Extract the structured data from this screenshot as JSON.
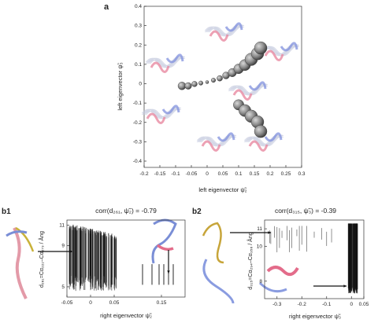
{
  "panel_a": {
    "label": "a",
    "xlabel": "left eigenvector ψ̃₂",
    "ylabel": "left eigenvector ψ̃₃",
    "xticks": [
      "-0.2",
      "-0.15",
      "-0.1",
      "-0.05",
      "0",
      "0.05",
      "0.1",
      "0.15",
      "0.2",
      "0.25",
      "0.3"
    ],
    "yticks": [
      "0.4",
      "0.3",
      "0.2",
      "0.1",
      "0",
      "-0.1",
      "-0.2",
      "-0.3",
      "-0.4"
    ]
  },
  "panel_b1": {
    "label": "b1",
    "title": "corr(d₂₆₁, ψ̃₂) = -0.79",
    "ylabel": "d₂₆₁=Cα₂₂₁–Cα₂₇₃ / Ång",
    "xlabel": "right eigenvector ψ̃₂",
    "xticks": [
      "-0.05",
      "0",
      "0.05",
      "0.15"
    ],
    "yticks": [
      "11",
      "9",
      "5"
    ]
  },
  "panel_b2": {
    "label": "b2",
    "title": "corr(d₃₁₅, ψ̃₃) = -0.39",
    "ylabel": "d₃₁₅=Cα₂₉₄–Cα₃₅₆ / Ång",
    "xlabel": "right eigenvector ψ̃₃",
    "xticks": [
      "-0.3",
      "-0.2",
      "-0.1",
      "0",
      "0.05"
    ],
    "yticks": [
      "11",
      "10",
      "8"
    ]
  },
  "chart_data": [
    {
      "type": "scatter",
      "title": "",
      "xlabel": "left eigenvector ψ̃₂",
      "ylabel": "left eigenvector ψ̃₃",
      "xlim": [
        -0.2,
        0.3
      ],
      "ylim": [
        -0.45,
        0.4
      ],
      "series": [
        {
          "points": [
            {
              "x": -0.08,
              "y": -0.02
            },
            {
              "x": -0.06,
              "y": -0.02
            },
            {
              "x": -0.04,
              "y": -0.01
            },
            {
              "x": -0.02,
              "y": -0.005
            },
            {
              "x": 0.0,
              "y": 0.0
            },
            {
              "x": 0.02,
              "y": 0.01
            },
            {
              "x": 0.04,
              "y": 0.02
            },
            {
              "x": 0.06,
              "y": 0.035
            },
            {
              "x": 0.08,
              "y": 0.05
            },
            {
              "x": 0.1,
              "y": 0.07
            },
            {
              "x": 0.12,
              "y": 0.09
            },
            {
              "x": 0.14,
              "y": 0.12
            },
            {
              "x": 0.16,
              "y": 0.15
            },
            {
              "x": 0.17,
              "y": 0.18
            },
            {
              "x": 0.1,
              "y": -0.12
            },
            {
              "x": 0.12,
              "y": -0.15
            },
            {
              "x": 0.14,
              "y": -0.18
            },
            {
              "x": 0.16,
              "y": -0.21
            },
            {
              "x": 0.17,
              "y": -0.26
            }
          ]
        }
      ]
    },
    {
      "type": "scatter",
      "title": "corr(d₂₆₁, ψ̃₂) = -0.79",
      "xlabel": "right eigenvector ψ̃₂",
      "ylabel": "d₂₆₁=Cα₂₂₁–Cα₂₇₃ / Ång",
      "xlim": [
        -0.05,
        0.2
      ],
      "ylim": [
        4,
        11.5
      ]
    },
    {
      "type": "scatter",
      "title": "corr(d₃₁₅, ψ̃₃) = -0.39",
      "xlabel": "right eigenvector ψ̃₃",
      "ylabel": "d₃₁₅=Cα₂₉₄–Cα₃₅₆ / Ång",
      "xlim": [
        -0.35,
        0.05
      ],
      "ylim": [
        7,
        11.5
      ]
    }
  ]
}
